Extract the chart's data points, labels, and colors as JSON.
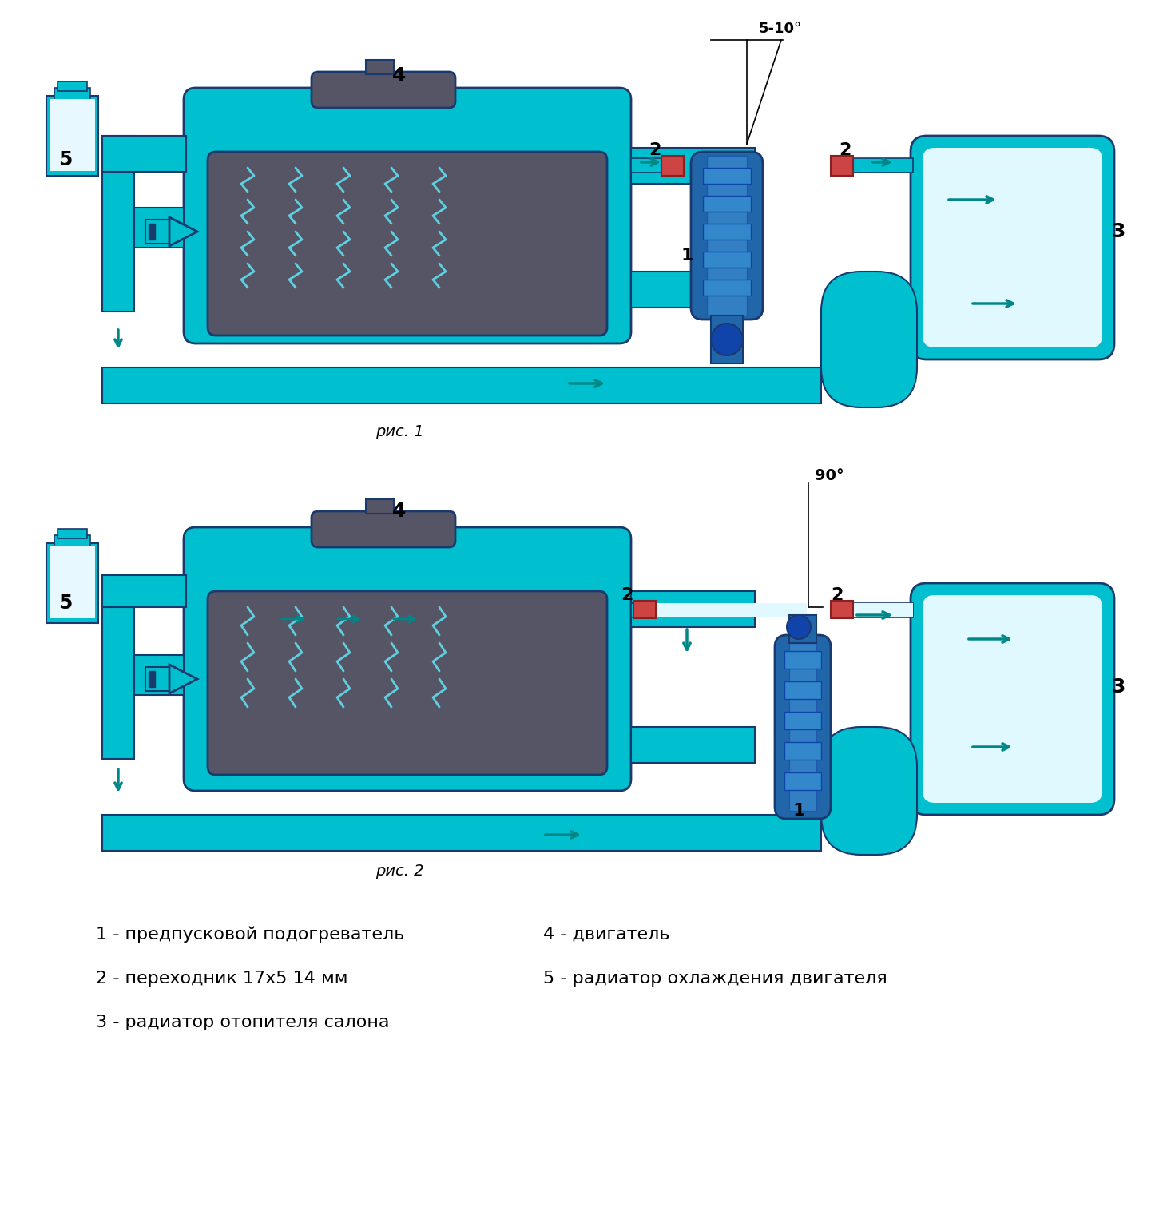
{
  "title": "",
  "bg_color": "#ffffff",
  "cyan_color": "#00BFCF",
  "cyan_light": "#40D8E8",
  "cyan_dark": "#008B9B",
  "dark_gray": "#555566",
  "blue_dark": "#1a3a6e",
  "red_color": "#cc3333",
  "arrow_color": "#008888",
  "legend_items": [
    "1 - предпусковой подогреватель",
    "2 - переходник 17х5 14 мм",
    "3 - радиатор отопителя салона"
  ],
  "legend_items_right": [
    "4 - двигатель",
    "5 - радиатор охлаждения двигателя"
  ],
  "label_1": "рис. 1",
  "label_2": "рис. 2",
  "angle_label_1": "5-10°",
  "angle_label_2": "90°"
}
